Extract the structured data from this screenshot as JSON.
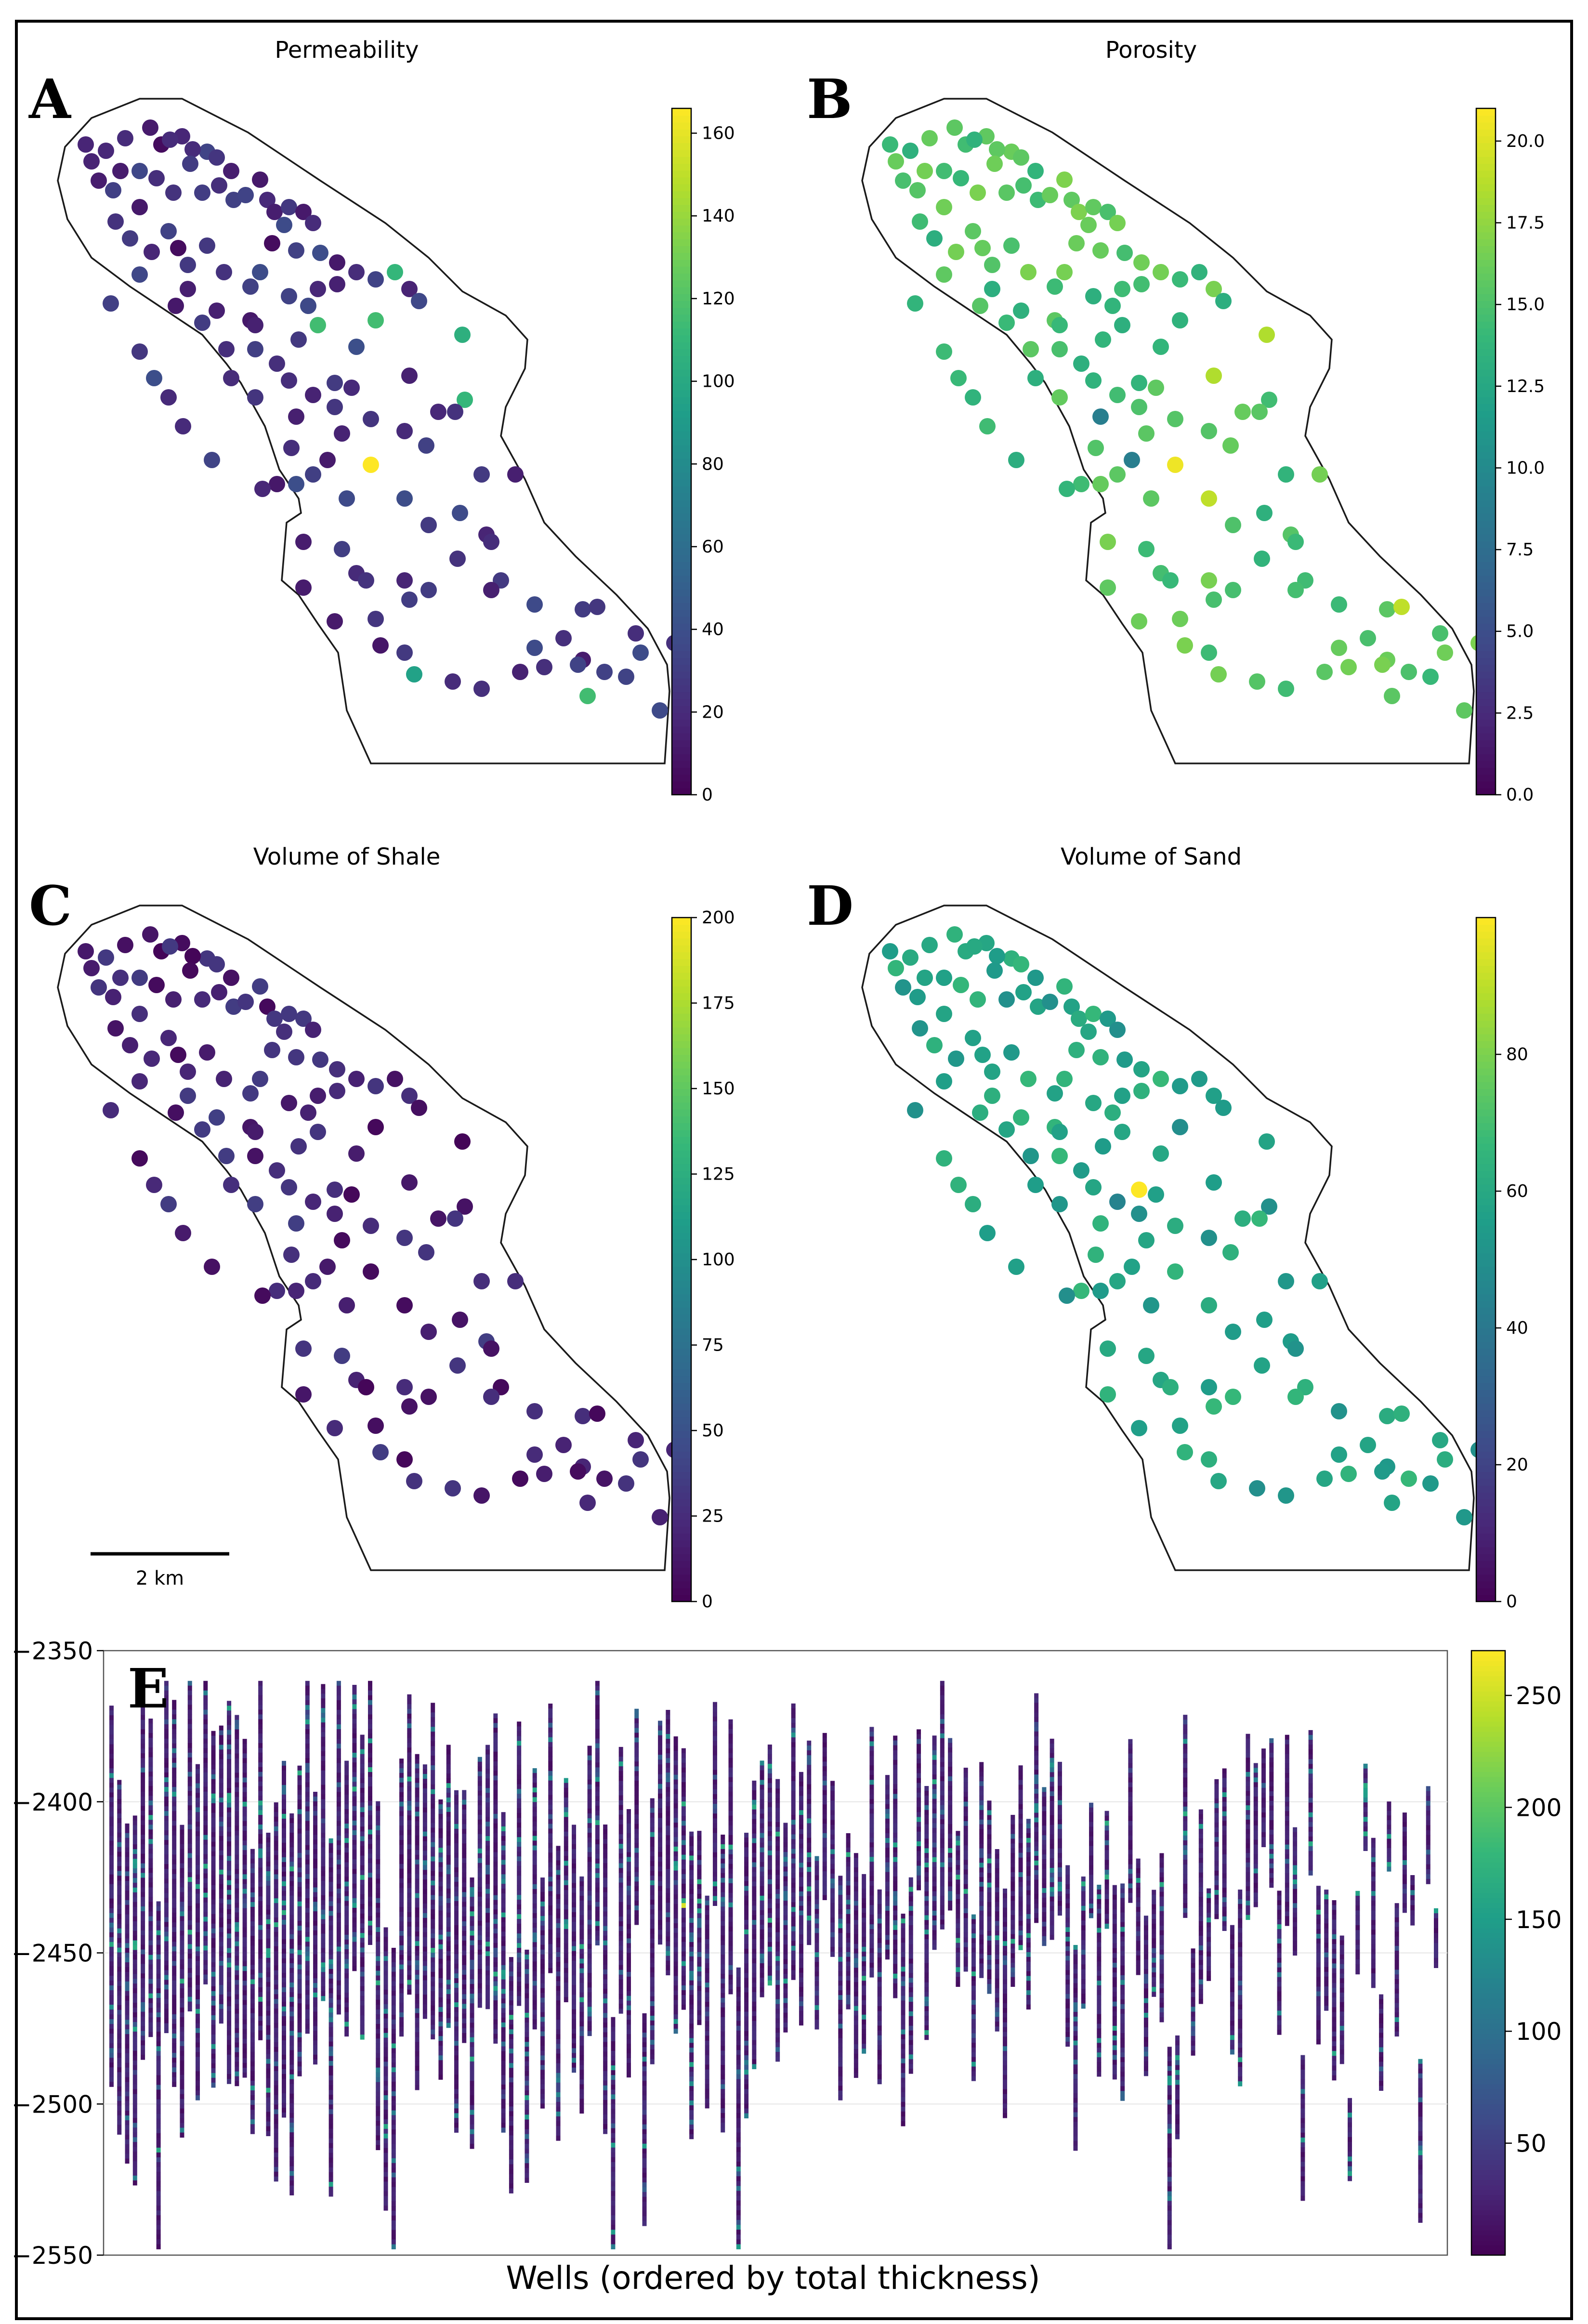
{
  "panels": [
    {
      "letter": "A",
      "title": "Permeability"
    },
    {
      "letter": "B",
      "title": "Porosity"
    },
    {
      "letter": "C",
      "title": "Volume of Shale"
    },
    {
      "letter": "D",
      "title": "Volume of Sand"
    },
    {
      "letter": "E",
      "title": ""
    }
  ],
  "scale_bar": {
    "label": "2 km"
  },
  "bottom_xlabel": "Wells (ordered by total thickness)",
  "colormap": "viridis",
  "chart_data": [
    {
      "type": "scatter",
      "panel": "A",
      "title": "Permeability",
      "colorbar": {
        "range": [
          0,
          166
        ],
        "ticks": [
          0,
          20,
          40,
          60,
          80,
          100,
          120,
          140,
          160
        ]
      },
      "dominant_value": 25,
      "highlights": [
        {
          "value": 166,
          "note": "max"
        },
        {
          "value": 110
        },
        {
          "value": 115
        },
        {
          "value": 105
        },
        {
          "value": 5
        }
      ]
    },
    {
      "type": "scatter",
      "panel": "B",
      "title": "Porosity",
      "colorbar": {
        "range": [
          0,
          21
        ],
        "ticks": [
          0.0,
          2.5,
          5.0,
          7.5,
          10.0,
          12.5,
          15.0,
          17.5,
          20.0
        ]
      },
      "dominant_value": 15,
      "highlights": [
        {
          "value": 20.5
        },
        {
          "value": 18.5
        },
        {
          "value": 9
        }
      ]
    },
    {
      "type": "scatter",
      "panel": "C",
      "title": "Volume of Shale",
      "colorbar": {
        "range": [
          0,
          200
        ],
        "ticks": [
          0,
          25,
          50,
          75,
          100,
          125,
          150,
          175,
          200
        ]
      },
      "dominant_value": 20
    },
    {
      "type": "scatter",
      "panel": "D",
      "title": "Volume of Sand",
      "colorbar": {
        "range": [
          0,
          100
        ],
        "ticks": [
          0,
          20,
          40,
          60,
          80
        ]
      },
      "dominant_value": 58,
      "highlights": [
        {
          "value": 100,
          "note": "max"
        },
        {
          "value": 45
        },
        {
          "value": 50
        }
      ]
    },
    {
      "type": "heatmap",
      "panel": "E",
      "title": "",
      "xlabel": "Wells (ordered by total thickness)",
      "ylabel": "",
      "ylim": [
        -2550,
        -2350
      ],
      "yticks": [
        -2550,
        -2500,
        -2450,
        -2400,
        -2350
      ],
      "grid": true,
      "colorbar": {
        "range": [
          0,
          270
        ],
        "ticks": [
          50,
          100,
          150,
          200,
          250
        ]
      }
    }
  ]
}
